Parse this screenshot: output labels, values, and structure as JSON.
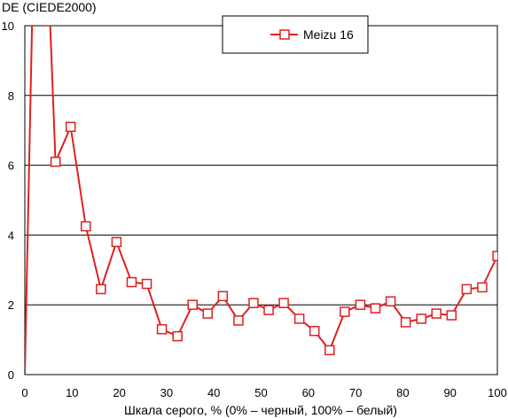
{
  "chart_data": {
    "type": "line",
    "title": "",
    "xlabel": "Шкала серого, % (0% – черный, 100% – белый)",
    "ylabel": "DE (CIEDE2000)",
    "xlim": [
      0,
      100
    ],
    "ylim": [
      0,
      10
    ],
    "x_ticks": [
      0,
      10,
      20,
      30,
      40,
      50,
      60,
      70,
      80,
      90,
      100
    ],
    "y_ticks": [
      0,
      2,
      4,
      6,
      8,
      10
    ],
    "grid": "horizontal",
    "legend_position": "top-right",
    "series": [
      {
        "name": "Meizu 16",
        "color": "#e02020",
        "marker": "square",
        "x": [
          0,
          1.6,
          3.2,
          4.8,
          6.5,
          9.7,
          12.9,
          16.1,
          19.4,
          22.6,
          25.8,
          29.0,
          32.3,
          35.5,
          38.7,
          41.9,
          45.2,
          48.4,
          51.6,
          54.8,
          58.1,
          61.3,
          64.5,
          67.7,
          71.0,
          74.2,
          77.4,
          80.6,
          83.9,
          87.1,
          90.3,
          93.5,
          96.8,
          100
        ],
        "y": [
          0,
          10.5,
          14,
          12,
          6.1,
          7.1,
          4.25,
          2.45,
          3.8,
          2.65,
          2.6,
          1.3,
          1.1,
          2.0,
          1.75,
          2.25,
          1.55,
          2.05,
          1.85,
          2.05,
          1.6,
          1.25,
          0.7,
          1.8,
          2.0,
          1.9,
          2.1,
          1.5,
          1.6,
          1.75,
          1.7,
          2.45,
          2.5,
          3.4
        ],
        "markers_from_index": 4
      }
    ]
  }
}
